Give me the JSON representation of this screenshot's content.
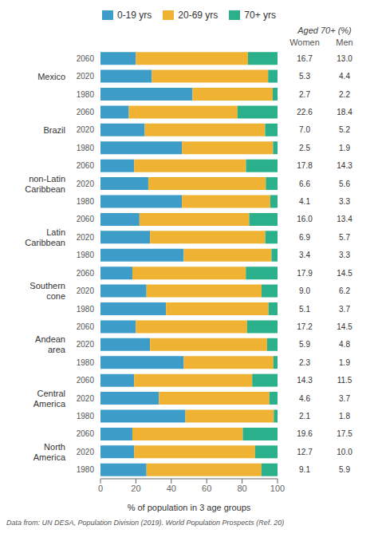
{
  "chart_data": {
    "type": "bar",
    "orientation": "horizontal",
    "stacked": true,
    "grid": false,
    "legend": "top",
    "xlabel": "% of population in 3 age groups",
    "xlim": [
      0,
      100
    ],
    "xticks": [
      0,
      20,
      40,
      60,
      80,
      100
    ],
    "categories": [
      "2060",
      "2020",
      "1980",
      "2060",
      "2020",
      "1980",
      "2060",
      "2020",
      "1980",
      "2060",
      "2020",
      "1980",
      "2060",
      "2020",
      "1980",
      "2060",
      "2020",
      "1980",
      "2060",
      "2020",
      "1980",
      "2060",
      "2020",
      "1980"
    ],
    "groups": [
      {
        "label": [
          "Mexico"
        ]
      },
      {
        "label": [
          "Brazil"
        ]
      },
      {
        "label": [
          "non-Latin",
          "Caribbean"
        ]
      },
      {
        "label": [
          "Latin",
          "Caribbean"
        ]
      },
      {
        "label": [
          "Southern",
          "cone"
        ]
      },
      {
        "label": [
          "Andean",
          "area"
        ]
      },
      {
        "label": [
          "Central",
          "America"
        ]
      },
      {
        "label": [
          "North",
          "America"
        ]
      }
    ],
    "series": [
      {
        "name": "0-19 yrs",
        "color": "#3d9dc8",
        "values": [
          20,
          29,
          52,
          16,
          25,
          46,
          19,
          27,
          46,
          22,
          28,
          47,
          18,
          26,
          37,
          20,
          28,
          47,
          19,
          33,
          48,
          18,
          19,
          26
        ]
      },
      {
        "name": "20-69 yrs",
        "color": "#f0b233",
        "values": [
          63.3,
          65.7,
          45.3,
          61.4,
          68,
          51.5,
          63.2,
          66.4,
          49.9,
          62,
          65.1,
          49.6,
          64.1,
          65,
          57.9,
          62.8,
          66.1,
          50.7,
          66.7,
          62.4,
          49.9,
          62.4,
          68.3,
          64.9
        ]
      },
      {
        "name": "70+ yrs",
        "color": "#2ab08a",
        "values": [
          16.7,
          5.3,
          2.7,
          22.6,
          7.0,
          2.5,
          17.8,
          6.6,
          4.1,
          16.0,
          6.9,
          3.4,
          17.9,
          9.0,
          5.1,
          17.2,
          5.9,
          2.3,
          14.3,
          4.6,
          2.1,
          19.6,
          12.7,
          9.1
        ]
      }
    ],
    "table": {
      "header": "Aged 70+ (%)",
      "columns": [
        {
          "name": "Women",
          "values": [
            16.7,
            5.3,
            2.7,
            22.6,
            7.0,
            2.5,
            17.8,
            6.6,
            4.1,
            16.0,
            6.9,
            3.4,
            17.9,
            9.0,
            5.1,
            17.2,
            5.9,
            2.3,
            14.3,
            4.6,
            2.1,
            19.6,
            12.7,
            9.1
          ]
        },
        {
          "name": "Men",
          "values": [
            13.0,
            4.4,
            2.2,
            18.4,
            5.2,
            1.9,
            14.3,
            5.6,
            3.3,
            13.4,
            5.7,
            3.3,
            14.5,
            6.2,
            3.7,
            14.5,
            4.8,
            1.9,
            11.5,
            3.7,
            1.8,
            17.5,
            10.0,
            5.9
          ]
        }
      ]
    },
    "footer": "Data from: UN DESA, Population Division (2019). World Population Prospects (Ref. 20)"
  }
}
